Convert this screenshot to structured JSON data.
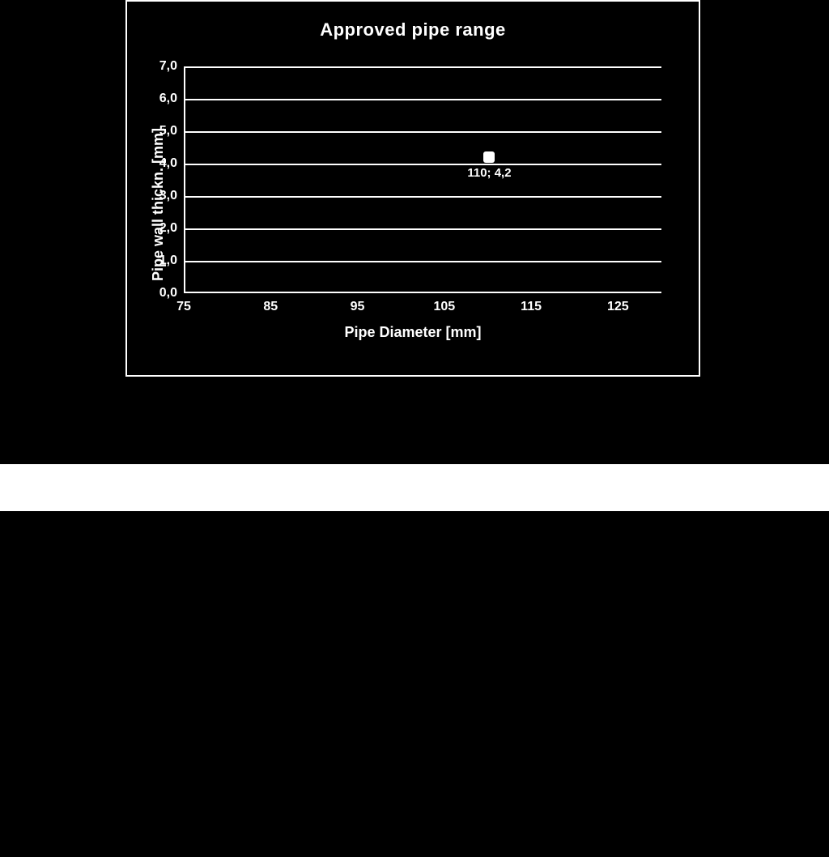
{
  "chart": {
    "type": "scatter",
    "title": "Approved pipe range",
    "title_fontsize": 22,
    "title_color": "#ffffff",
    "background_color": "#000000",
    "border_color": "#ffffff",
    "gridline_color": "#ffffff",
    "axis_color": "#ffffff",
    "tick_color": "#ffffff",
    "tick_fontsize": 16,
    "axis_label_fontsize": 18,
    "x": {
      "label": "Pipe Diameter [mm]",
      "min": 75,
      "max": 130,
      "ticks": [
        75,
        85,
        95,
        105,
        115,
        125
      ]
    },
    "y": {
      "label": "Pipe wall thickn. [mm]",
      "min": 0.0,
      "max": 7.0,
      "ticks": [
        0.0,
        1.0,
        2.0,
        3.0,
        4.0,
        5.0,
        6.0,
        7.0
      ],
      "tick_labels": [
        "0,0",
        "1,0",
        "2,0",
        "3,0",
        "4,0",
        "5,0",
        "6,0",
        "7,0"
      ]
    },
    "series": [
      {
        "name": "approved-point",
        "points": [
          {
            "x": 110,
            "y": 4.2,
            "label": "110; 4,2"
          }
        ],
        "marker_color": "#ffffff",
        "marker_size": 14,
        "label_color": "#ffffff",
        "label_fontsize": 15
      }
    ]
  },
  "bands": {
    "white_band_top": 573,
    "white_band_height": 58,
    "white_band_color": "#ffffff"
  }
}
